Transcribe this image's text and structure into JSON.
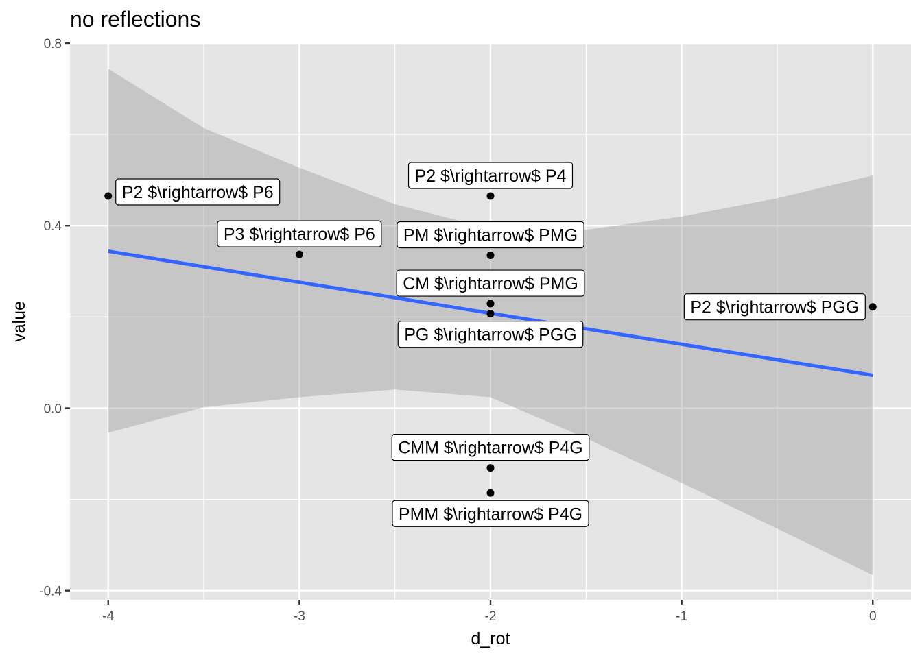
{
  "chart_data": {
    "type": "scatter",
    "title": "no reflections",
    "xlabel": "d_rot",
    "ylabel": "value",
    "xlim": [
      -4.2,
      0.2
    ],
    "ylim": [
      -0.42,
      0.8
    ],
    "x_ticks": [
      -4,
      -3,
      -2,
      -1,
      0
    ],
    "x_tick_labels": [
      "-4",
      "-3",
      "-2",
      "-1",
      "0"
    ],
    "y_ticks": [
      -0.4,
      0.0,
      0.4,
      0.8
    ],
    "y_tick_labels": [
      "-0.4",
      "0.0",
      "0.4",
      "0.8"
    ],
    "grid": true,
    "panel_background": "#e5e5e5",
    "grid_color": "#ffffff",
    "points": [
      {
        "x": -4,
        "y": 0.465,
        "label": "P2 $\\rightarrow$ P6",
        "label_pos": "right"
      },
      {
        "x": -3,
        "y": 0.337,
        "label": "P3 $\\rightarrow$ P6",
        "label_pos": "above"
      },
      {
        "x": -2,
        "y": 0.465,
        "label": "P2 $\\rightarrow$ P4",
        "label_pos": "above"
      },
      {
        "x": -2,
        "y": 0.335,
        "label": "PM $\\rightarrow$ PMG",
        "label_pos": "above"
      },
      {
        "x": -2,
        "y": 0.229,
        "label": "CM $\\rightarrow$ PMG",
        "label_pos": "above"
      },
      {
        "x": -2,
        "y": 0.207,
        "label": "PG $\\rightarrow$ PGG",
        "label_pos": "below"
      },
      {
        "x": 0,
        "y": 0.222,
        "label": "P2 $\\rightarrow$ PGG",
        "label_pos": "left"
      },
      {
        "x": -2,
        "y": -0.131,
        "label": "CMM $\\rightarrow$ P4G",
        "label_pos": "above"
      },
      {
        "x": -2,
        "y": -0.186,
        "label": "PMM $\\rightarrow$ P4G",
        "label_pos": "below"
      }
    ],
    "fit_line": {
      "x": [
        -4,
        0
      ],
      "y": [
        0.344,
        0.072
      ],
      "color": "#3366ff"
    },
    "confidence_band": {
      "color": "#999999",
      "x": [
        -4,
        -3.5,
        -3,
        -2.5,
        -2,
        -1.5,
        -1,
        -0.5,
        0
      ],
      "upper": [
        0.744,
        0.614,
        0.527,
        0.447,
        0.393,
        0.391,
        0.42,
        0.46,
        0.51
      ],
      "lower": [
        -0.054,
        0.002,
        0.024,
        0.041,
        0.024,
        -0.066,
        -0.164,
        -0.264,
        -0.366
      ]
    }
  }
}
